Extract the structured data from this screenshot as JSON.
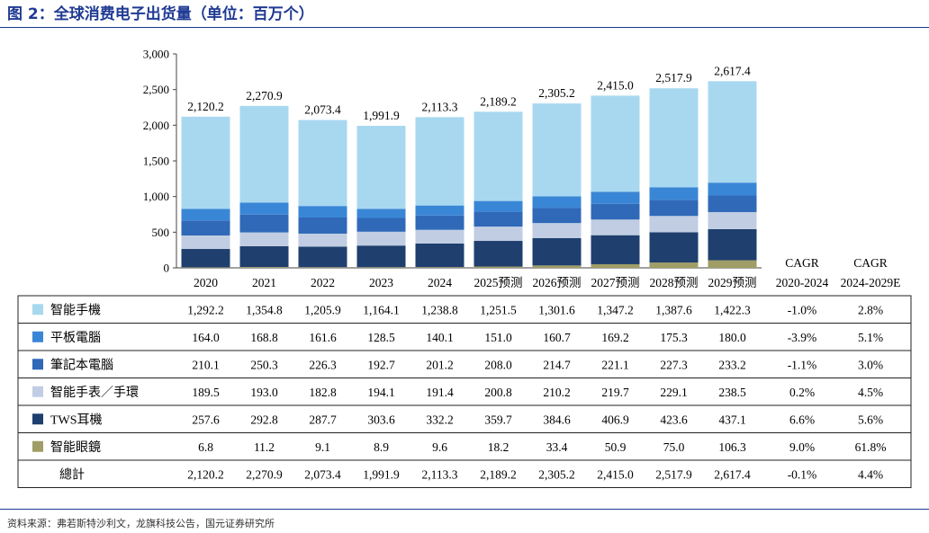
{
  "page": {
    "title": "图 2：全球消费电子出货量（单位：百万个）",
    "source": "资料来源：弗若斯特沙利文，龙旗科技公告，国元证券研究所"
  },
  "chart_data": {
    "type": "bar",
    "stacked": true,
    "categories": [
      "2020",
      "2021",
      "2022",
      "2023",
      "2024",
      "2025预测",
      "2026预测",
      "2027预测",
      "2028预测",
      "2029预测"
    ],
    "ylim": [
      0,
      3000
    ],
    "yticks": [
      "0",
      "500",
      "1,000",
      "1,500",
      "2,000",
      "2,500",
      "3,000"
    ],
    "ytick_values": [
      0,
      500,
      1000,
      1500,
      2000,
      2500,
      3000
    ],
    "series": [
      {
        "name": "智能眼鏡",
        "color": "#a09e66",
        "values": [
          6.8,
          11.2,
          9.1,
          8.9,
          9.6,
          18.2,
          33.4,
          50.9,
          75.0,
          106.3
        ],
        "cells": [
          "6.8",
          "11.2",
          "9.1",
          "8.9",
          "9.6",
          "18.2",
          "33.4",
          "50.9",
          "75.0",
          "106.3"
        ],
        "cagr": [
          "9.0%",
          "61.8%"
        ]
      },
      {
        "name": "TWS耳機",
        "color": "#1f3f6e",
        "values": [
          257.6,
          292.8,
          287.7,
          303.6,
          332.2,
          359.7,
          384.6,
          406.9,
          423.6,
          437.1
        ],
        "cells": [
          "257.6",
          "292.8",
          "287.7",
          "303.6",
          "332.2",
          "359.7",
          "384.6",
          "406.9",
          "423.6",
          "437.1"
        ],
        "cagr": [
          "6.6%",
          "5.6%"
        ]
      },
      {
        "name": "智能手表／手環",
        "color": "#c0cde3",
        "values": [
          189.5,
          193.0,
          182.8,
          194.1,
          191.4,
          200.8,
          210.2,
          219.7,
          229.1,
          238.5
        ],
        "cells": [
          "189.5",
          "193.0",
          "182.8",
          "194.1",
          "191.4",
          "200.8",
          "210.2",
          "219.7",
          "229.1",
          "238.5"
        ],
        "cagr": [
          "0.2%",
          "4.5%"
        ]
      },
      {
        "name": "筆記本電腦",
        "color": "#2f69b8",
        "values": [
          210.1,
          250.3,
          226.3,
          192.7,
          201.2,
          208.0,
          214.7,
          221.1,
          227.3,
          233.2
        ],
        "cells": [
          "210.1",
          "250.3",
          "226.3",
          "192.7",
          "201.2",
          "208.0",
          "214.7",
          "221.1",
          "227.3",
          "233.2"
        ],
        "cagr": [
          "-1.1%",
          "3.0%"
        ]
      },
      {
        "name": "平板電腦",
        "color": "#3a86d6",
        "values": [
          164.0,
          168.8,
          161.6,
          128.5,
          140.1,
          151.0,
          160.7,
          169.2,
          175.3,
          180.0
        ],
        "cells": [
          "164.0",
          "168.8",
          "161.6",
          "128.5",
          "140.1",
          "151.0",
          "160.7",
          "169.2",
          "175.3",
          "180.0"
        ],
        "cagr": [
          "-3.9%",
          "5.1%"
        ]
      },
      {
        "name": "智能手機",
        "color": "#a8d8f0",
        "values": [
          1292.2,
          1354.8,
          1205.9,
          1164.1,
          1238.8,
          1251.5,
          1301.6,
          1347.2,
          1387.6,
          1422.3
        ],
        "cells": [
          "1,292.2",
          "1,354.8",
          "1,205.9",
          "1,164.1",
          "1,238.8",
          "1,251.5",
          "1,301.6",
          "1,347.2",
          "1,387.6",
          "1,422.3"
        ],
        "cagr": [
          "-1.0%",
          "2.8%"
        ]
      }
    ],
    "table_row_order": [
      "智能手機",
      "平板電腦",
      "筆記本電腦",
      "智能手表／手環",
      "TWS耳機",
      "智能眼鏡"
    ],
    "totals": {
      "name": "總計",
      "values": [
        2120.2,
        2270.9,
        2073.4,
        1991.9,
        2113.3,
        2189.2,
        2305.2,
        2415.0,
        2517.9,
        2617.4
      ],
      "labels": [
        "2,120.2",
        "2,270.9",
        "2,073.4",
        "1,991.9",
        "2,113.3",
        "2,189.2",
        "2,305.2",
        "2,415.0",
        "2,517.9",
        "2,617.4"
      ],
      "cagr": [
        "-0.1%",
        "4.4%"
      ]
    },
    "cagr_headers": [
      {
        "label": "CAGR",
        "period": "2020-2024"
      },
      {
        "label": "CAGR",
        "period": "2024-2029E"
      }
    ]
  }
}
